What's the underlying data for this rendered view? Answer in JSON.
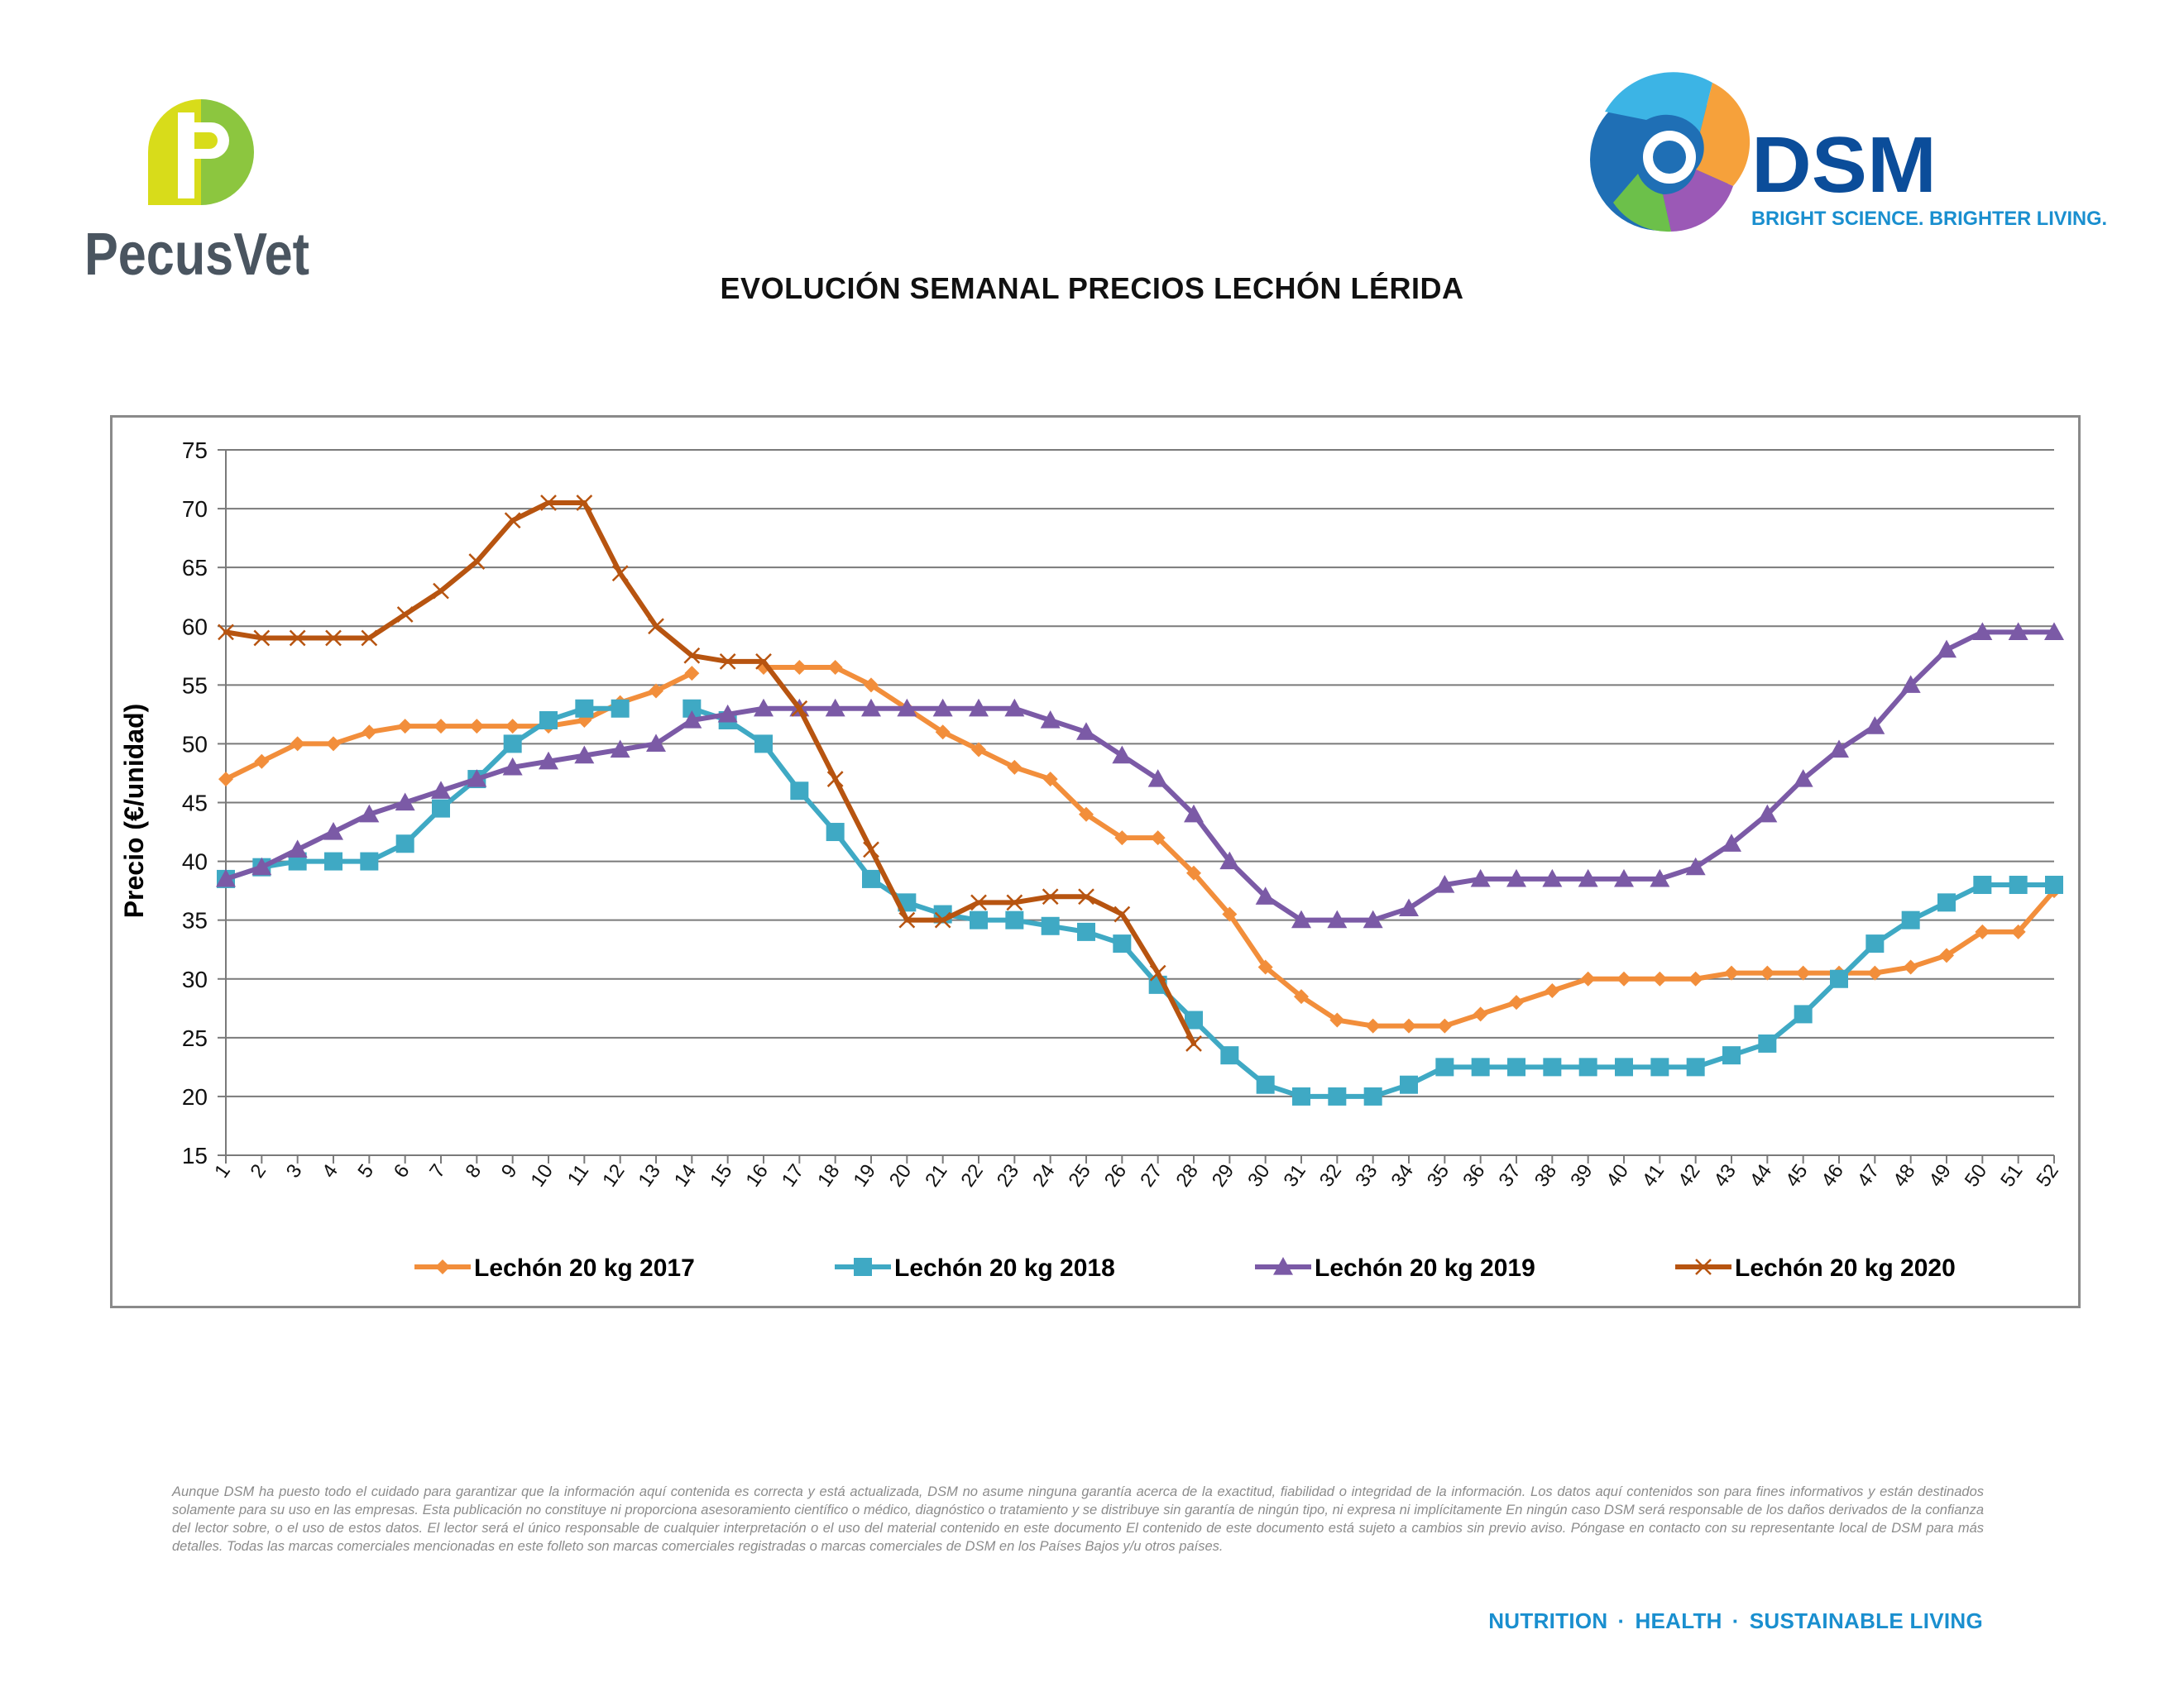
{
  "logos": {
    "pecusvet": {
      "text": "PecusVet",
      "letter": "P",
      "colors": {
        "yellow": "#d8dc1a",
        "green": "#8cc63f",
        "text": "#4a5560"
      }
    },
    "dsm": {
      "text": "DSM",
      "slogan": "BRIGHT SCIENCE. BRIGHTER LIVING.",
      "colors": {
        "text": "#0b4d9a",
        "slogan": "#1a8fcf"
      }
    }
  },
  "title": "EVOLUCIÓN SEMANAL PRECIOS LECHÓN LÉRIDA",
  "chart_data": {
    "type": "line",
    "title": "",
    "xlabel": "",
    "ylabel": "Precio (€/unidad)",
    "ylim": [
      15,
      75
    ],
    "ytick_step": 5,
    "grid": true,
    "legend_position": "bottom",
    "x": [
      1,
      2,
      3,
      4,
      5,
      6,
      7,
      8,
      9,
      10,
      11,
      12,
      13,
      14,
      15,
      16,
      17,
      18,
      19,
      20,
      21,
      22,
      23,
      24,
      25,
      26,
      27,
      28,
      29,
      30,
      31,
      32,
      33,
      34,
      35,
      36,
      37,
      38,
      39,
      40,
      41,
      42,
      43,
      44,
      45,
      46,
      47,
      48,
      49,
      50,
      51,
      52
    ],
    "series": [
      {
        "name": "Lechón 20 kg 2017",
        "color": "#f28e3b",
        "marker": "diamond",
        "values": [
          47,
          48.5,
          50,
          50,
          51,
          51.5,
          51.5,
          51.5,
          51.5,
          51.5,
          52,
          53.5,
          54.5,
          56,
          null,
          56.5,
          56.5,
          56.5,
          55,
          53,
          51,
          49.5,
          48,
          47,
          44,
          42,
          42,
          39,
          35.5,
          31,
          28.5,
          26.5,
          26,
          26,
          26,
          27,
          28,
          29,
          30,
          30,
          30,
          30,
          30.5,
          30.5,
          30.5,
          30.5,
          30.5,
          31,
          32,
          34,
          34,
          37.5
        ]
      },
      {
        "name": "Lechón 20 kg 2018",
        "color": "#3fa9c4",
        "marker": "square",
        "values": [
          38.5,
          39.5,
          40,
          40,
          40,
          41.5,
          44.5,
          47,
          50,
          52,
          53,
          53,
          null,
          53,
          52,
          50,
          46,
          42.5,
          38.5,
          36.5,
          35.5,
          35,
          35,
          34.5,
          34,
          33,
          29.5,
          26.5,
          23.5,
          21,
          20,
          20,
          20,
          21,
          22.5,
          22.5,
          22.5,
          22.5,
          22.5,
          22.5,
          22.5,
          22.5,
          23.5,
          24.5,
          27,
          30,
          33,
          35,
          36.5,
          38,
          38,
          38
        ]
      },
      {
        "name": "Lechón 20 kg 2019",
        "color": "#7b5aa6",
        "marker": "triangle",
        "values": [
          38.5,
          39.5,
          41,
          42.5,
          44,
          45,
          46,
          47,
          48,
          48.5,
          49,
          49.5,
          50,
          52,
          52.5,
          53,
          53,
          53,
          53,
          53,
          53,
          53,
          53,
          52,
          51,
          49,
          47,
          44,
          40,
          37,
          35,
          35,
          35,
          36,
          38,
          38.5,
          38.5,
          38.5,
          38.5,
          38.5,
          38.5,
          39.5,
          41.5,
          44,
          47,
          49.5,
          51.5,
          55,
          58,
          59.5,
          59.5,
          59.5
        ]
      },
      {
        "name": "Lechón 20 kg 2020",
        "color": "#b75410",
        "marker": "x",
        "values": [
          59.5,
          59,
          59,
          59,
          59,
          61,
          63,
          65.5,
          69,
          70.5,
          70.5,
          64.5,
          60,
          57.5,
          57,
          57,
          53,
          47,
          41,
          35,
          35,
          36.5,
          36.5,
          37,
          37,
          35.5,
          30.5,
          24.5,
          null,
          null,
          null,
          null,
          null,
          null,
          null,
          null,
          null,
          null,
          null,
          null,
          null,
          null,
          null,
          null,
          null,
          null,
          null,
          null,
          null,
          null,
          null,
          null
        ]
      }
    ]
  },
  "disclaimer": "Aunque DSM ha puesto todo el cuidado para garantizar que la información aquí contenida es correcta y está actualizada, DSM no asume ninguna garantía acerca de la exactitud, fiabilidad o integridad de la información. Los datos aquí contenidos son para fines informativos y están destinados solamente para su uso en las empresas. Esta publicación no constituye ni proporciona asesoramiento científico o médico, diagnóstico o tratamiento y se distribuye sin garantía de ningún tipo, ni expresa ni implícitamente En ningún caso DSM será responsable de los daños derivados de la confianza del lector sobre, o el uso de estos datos. El lector será el único responsable de cualquier interpretación o el uso del material contenido en este documento El contenido de este documento está sujeto a cambios sin previo aviso. Póngase en contacto con su representante local de DSM para más detalles. Todas las marcas comerciales mencionadas en este folleto son marcas comerciales registradas o marcas comerciales de DSM en los Países Bajos y/u otros países.",
  "footer": {
    "items": [
      "NUTRITION",
      "HEALTH",
      "SUSTAINABLE LIVING"
    ],
    "separator": "·"
  }
}
